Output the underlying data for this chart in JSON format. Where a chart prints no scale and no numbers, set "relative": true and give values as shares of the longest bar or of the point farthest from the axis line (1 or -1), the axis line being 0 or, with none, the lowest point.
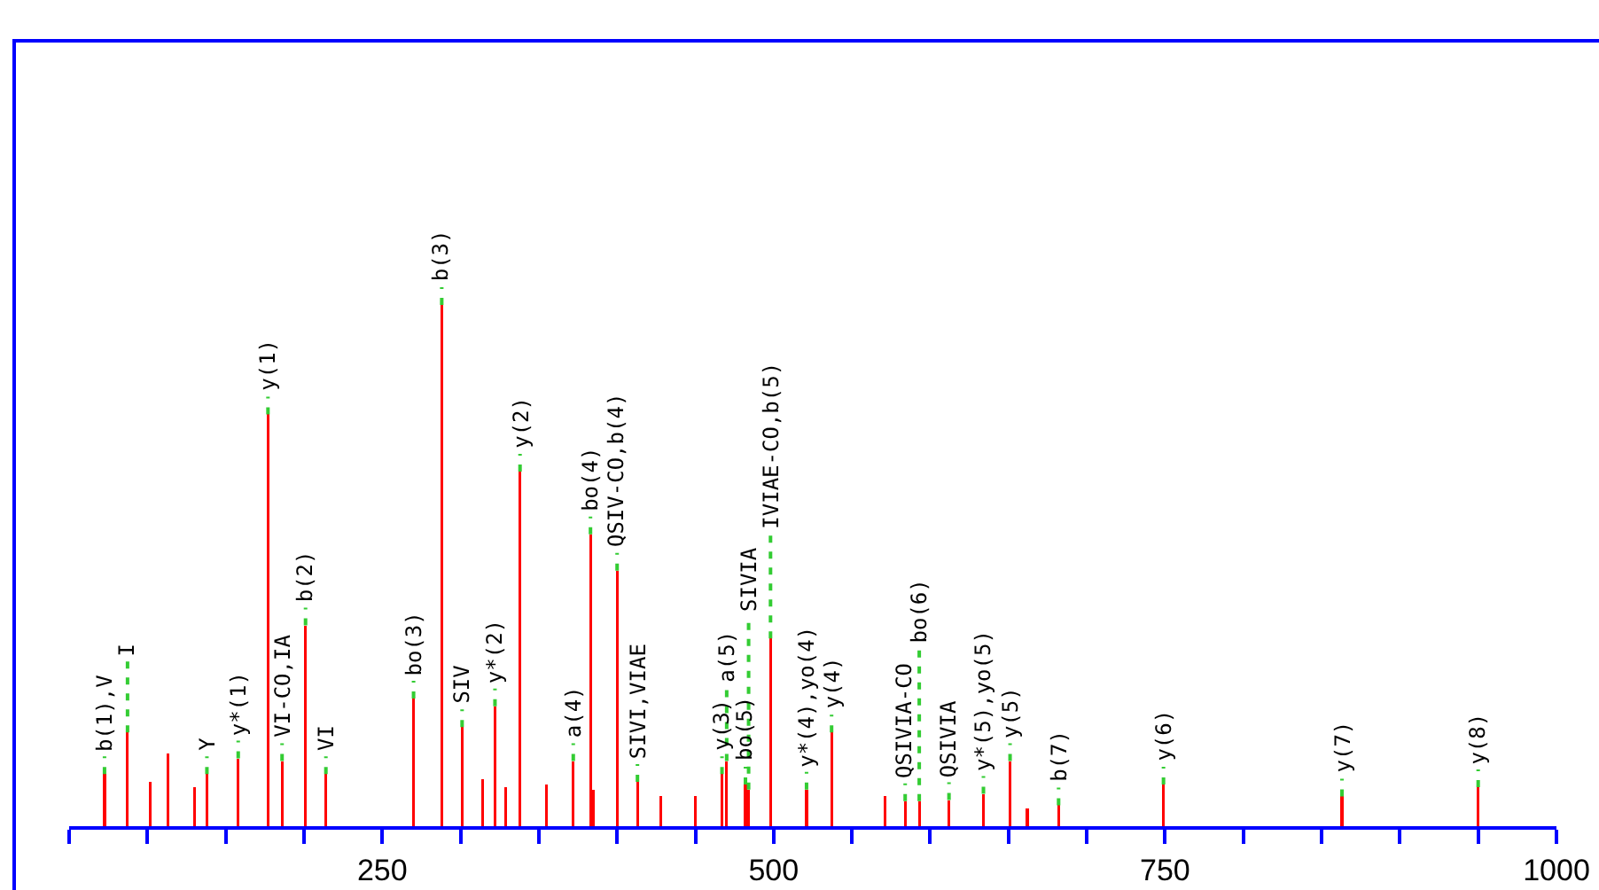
{
  "chart_data": {
    "type": "bar",
    "relative": true,
    "color": "#ff0000",
    "x": [
      72.6,
      87.3,
      102,
      113,
      130,
      138,
      158,
      177,
      186,
      201,
      214,
      270,
      288,
      301,
      314,
      322,
      329,
      338,
      355,
      372,
      383,
      385,
      400,
      413,
      428,
      450,
      467,
      470,
      482,
      484,
      498,
      521,
      537,
      571,
      584,
      593,
      612,
      634,
      651,
      662,
      682,
      749,
      863,
      950
    ],
    "values": [
      0.1,
      0.18,
      0.085,
      0.14,
      0.075,
      0.1,
      0.13,
      0.79,
      0.125,
      0.385,
      0.1,
      0.245,
      1,
      0.19,
      0.09,
      0.23,
      0.075,
      0.68,
      0.08,
      0.125,
      0.56,
      0.07,
      0.49,
      0.085,
      0.057,
      0.057,
      0.1,
      0.125,
      0.08,
      0.07,
      0.36,
      0.07,
      0.18,
      0.057,
      0.048,
      0.048,
      0.05,
      0.062,
      0.125,
      0.034,
      0.04,
      0.08,
      0.057,
      0.075
    ],
    "xlim": [
      50,
      1000
    ],
    "xticks": [
      {
        "value": 50,
        "label": null
      },
      {
        "value": 100,
        "label": null
      },
      {
        "value": 150,
        "label": null
      },
      {
        "value": 200,
        "label": null
      },
      250,
      {
        "value": 300,
        "label": null
      },
      {
        "value": 350,
        "label": null
      },
      {
        "value": 400,
        "label": null
      },
      {
        "value": 450,
        "label": null
      },
      500,
      {
        "value": 550,
        "label": null
      },
      {
        "value": 600,
        "label": null
      },
      {
        "value": 650,
        "label": null
      },
      {
        "value": 700,
        "label": null
      },
      750,
      {
        "value": 800,
        "label": null
      },
      {
        "value": 850,
        "label": null
      },
      {
        "value": 900,
        "label": null
      },
      {
        "value": 950,
        "label": null
      },
      1000
    ],
    "legend": false,
    "annotations": [
      {
        "text": "b(1),V",
        "x": 72.6,
        "y": 0.1
      },
      {
        "text": "I",
        "x": 87.3,
        "y": 0.18
      },
      {
        "text": "Y",
        "x": 138,
        "y": 0.1
      },
      {
        "text": "y*(1)",
        "x": 158,
        "y": 0.13
      },
      {
        "text": "y(1)",
        "x": 177,
        "y": 0.79
      },
      {
        "text": "VI-CO,IA",
        "x": 186,
        "y": 0.125
      },
      {
        "text": "b(2)",
        "x": 201,
        "y": 0.385
      },
      {
        "text": "VI",
        "x": 214,
        "y": 0.1
      },
      {
        "text": "bo(3)",
        "x": 270,
        "y": 0.245
      },
      {
        "text": "b(3)",
        "x": 288,
        "y": 1
      },
      {
        "text": "SIV",
        "x": 301,
        "y": 0.19
      },
      {
        "text": "y*(2)",
        "x": 322,
        "y": 0.23
      },
      {
        "text": "y(2)",
        "x": 338,
        "y": 0.68
      },
      {
        "text": "a(4)",
        "x": 372,
        "y": 0.125
      },
      {
        "text": "bo(4)",
        "x": 383,
        "y": 0.56
      },
      {
        "text": "QSIV-CO,b(4)",
        "x": 400,
        "y": 0.49
      },
      {
        "text": "SIVI,VIAE",
        "x": 413,
        "y": 0.085
      },
      {
        "text": "y(3)",
        "x": 467,
        "y": 0.1
      },
      {
        "text": "a(5)",
        "x": 470,
        "y": 0.125
      },
      {
        "text": "bo(5)",
        "x": 482,
        "y": 0.08
      },
      {
        "text": "SIVIA",
        "x": 484,
        "y": 0.07
      },
      {
        "text": "IVIAE-CO,b(5)",
        "x": 498,
        "y": 0.36
      },
      {
        "text": "y*(4),yo(4)",
        "x": 521,
        "y": 0.07
      },
      {
        "text": "y(4)",
        "x": 537,
        "y": 0.18
      },
      {
        "text": "QSIVIA-CO",
        "x": 584,
        "y": 0.048
      },
      {
        "text": "bo(6)",
        "x": 593,
        "y": 0.048
      },
      {
        "text": "QSIVIA",
        "x": 612,
        "y": 0.05
      },
      {
        "text": "y*(5),yo(5)",
        "x": 634,
        "y": 0.062
      },
      {
        "text": "y(5)",
        "x": 651,
        "y": 0.125
      },
      {
        "text": "b(7)",
        "x": 682,
        "y": 0.04
      },
      {
        "text": "y(6)",
        "x": 749,
        "y": 0.08
      },
      {
        "text": "y(7)",
        "x": 863,
        "y": 0.057
      },
      {
        "text": "y(8)",
        "x": 950,
        "y": 0.075
      }
    ]
  }
}
